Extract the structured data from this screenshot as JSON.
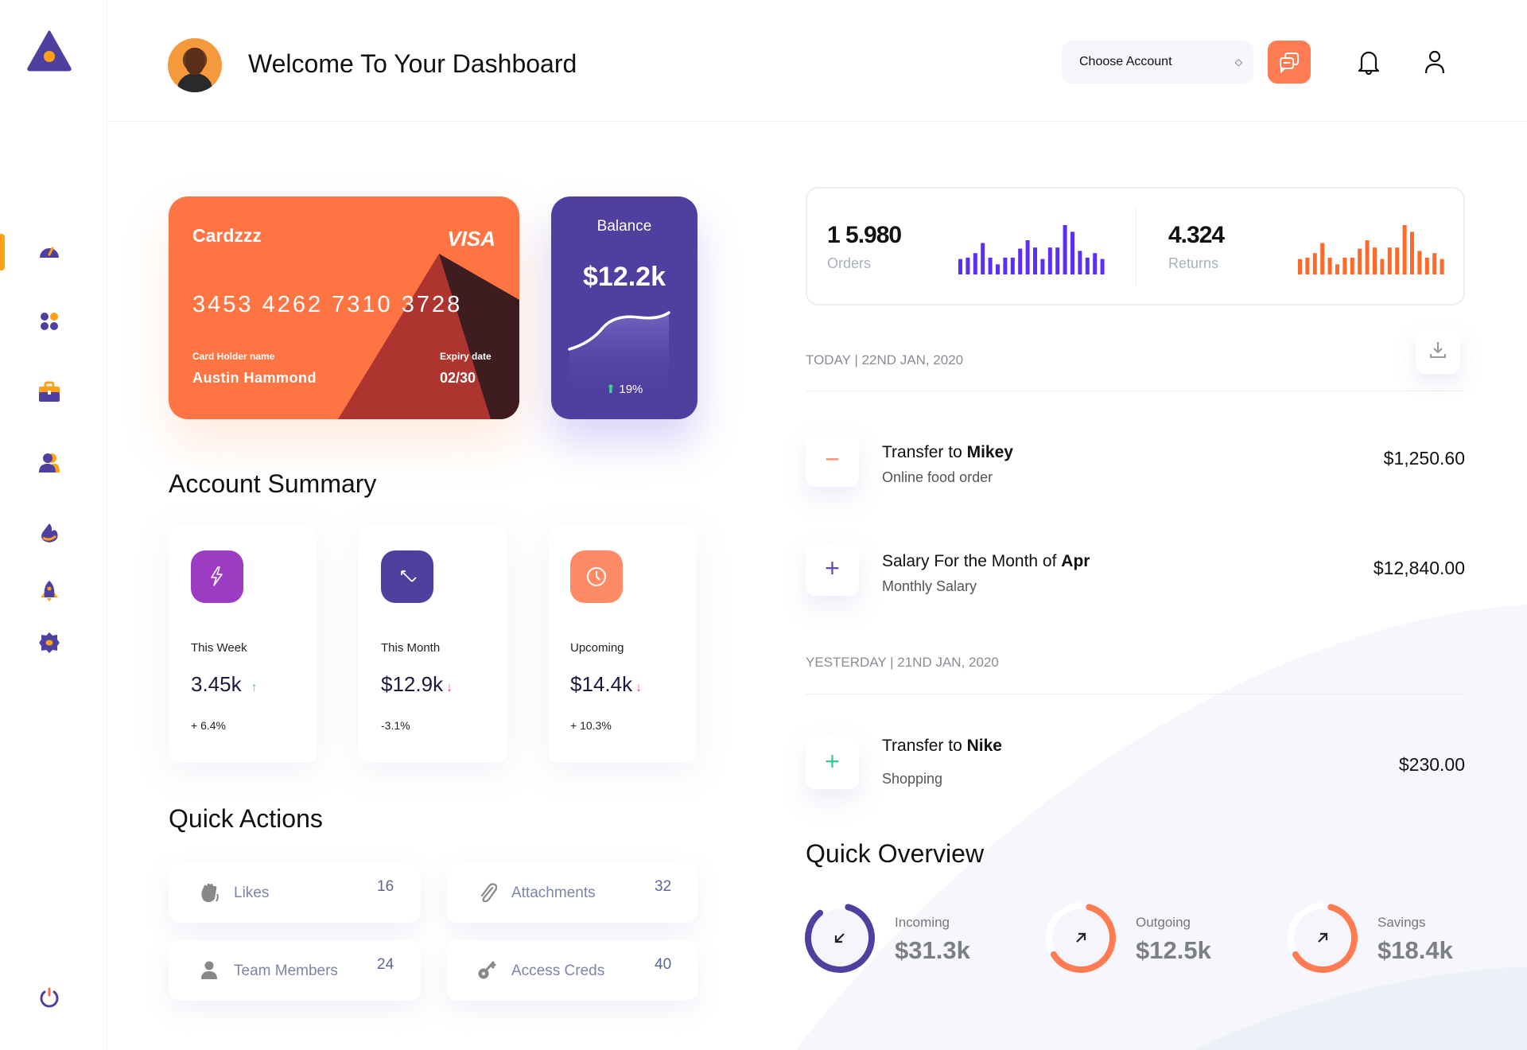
{
  "header": {
    "title": "Welcome To Your Dashboard",
    "account_select": "Choose Account"
  },
  "sidebar": {
    "items": [
      "dashboard",
      "apps",
      "portfolio",
      "users",
      "trending",
      "launch",
      "settings"
    ],
    "logout": "power"
  },
  "card": {
    "brand": "Cardzzz",
    "network": "VISA",
    "number": "3453 4262 7310 3728",
    "holder_label": "Card Holder name",
    "holder": "Austin Hammond",
    "expiry_label": "Expiry date",
    "expiry": "02/30"
  },
  "balance": {
    "label": "Balance",
    "value": "$12.2k",
    "change": "19%"
  },
  "account_summary": {
    "title": "Account Summary",
    "items": [
      {
        "label": "This Week",
        "value": "3.45k",
        "trend": "up",
        "change": "+ 6.4%",
        "color": "#9c3cc2"
      },
      {
        "label": "This Month",
        "value": "$12.9k",
        "trend": "down",
        "change": "-3.1%",
        "color": "#4f40a0"
      },
      {
        "label": "Upcoming",
        "value": "$14.4k",
        "trend": "down",
        "change": "+ 10.3%",
        "color": "#ff8b66"
      }
    ]
  },
  "quick_actions": {
    "title": "Quick Actions",
    "items": [
      {
        "label": "Likes",
        "count": "16",
        "icon": "clap-icon"
      },
      {
        "label": "Attachments",
        "count": "32",
        "icon": "paperclip-icon"
      },
      {
        "label": "Team Members",
        "count": "24",
        "icon": "user-icon"
      },
      {
        "label": "Access Creds",
        "count": "40",
        "icon": "key-icon"
      }
    ]
  },
  "stats": {
    "orders": {
      "value": "1 5.980",
      "label": "Orders",
      "color": "#5b2df5",
      "bars": [
        55,
        60,
        76,
        112,
        60,
        36,
        60,
        60,
        92,
        122,
        96,
        55,
        96,
        96,
        176,
        152,
        84,
        60,
        76,
        55
      ]
    },
    "returns": {
      "value": "4.324",
      "label": "Returns",
      "color": "#ff6a2b",
      "bars": [
        55,
        60,
        76,
        112,
        60,
        36,
        60,
        60,
        92,
        122,
        96,
        55,
        96,
        96,
        176,
        152,
        84,
        60,
        76,
        55
      ]
    }
  },
  "transactions": {
    "today_label": "TODAY | 22ND JAN, 2020",
    "yesterday_label": "YESTERDAY | 21ND JAN, 2020",
    "items": [
      {
        "prefix": "Transfer to ",
        "name": "Mikey",
        "sub": "Online food order",
        "amount": "$1,250.60",
        "sign": "−",
        "color": "#ff8a66"
      },
      {
        "prefix": "Salary For the Month of ",
        "name": "Apr",
        "sub": "Monthly Salary",
        "amount": "$12,840.00",
        "sign": "+",
        "color": "#5b4bc4"
      },
      {
        "prefix": "Transfer to ",
        "name": "Nike",
        "sub": "Shopping",
        "amount": "$230.00",
        "sign": "+",
        "color": "#2ecc9a"
      }
    ]
  },
  "overview": {
    "title": "Quick Overview",
    "items": [
      {
        "label": "Incoming",
        "value": "$31.3k",
        "color": "#4f40a0",
        "progress": 0.85
      },
      {
        "label": "Outgoing",
        "value": "$12.5k",
        "color": "#ff7b52",
        "progress": 0.62
      },
      {
        "label": "Savings",
        "value": "$18.4k",
        "color": "#ff7b52",
        "progress": 0.62
      }
    ]
  }
}
